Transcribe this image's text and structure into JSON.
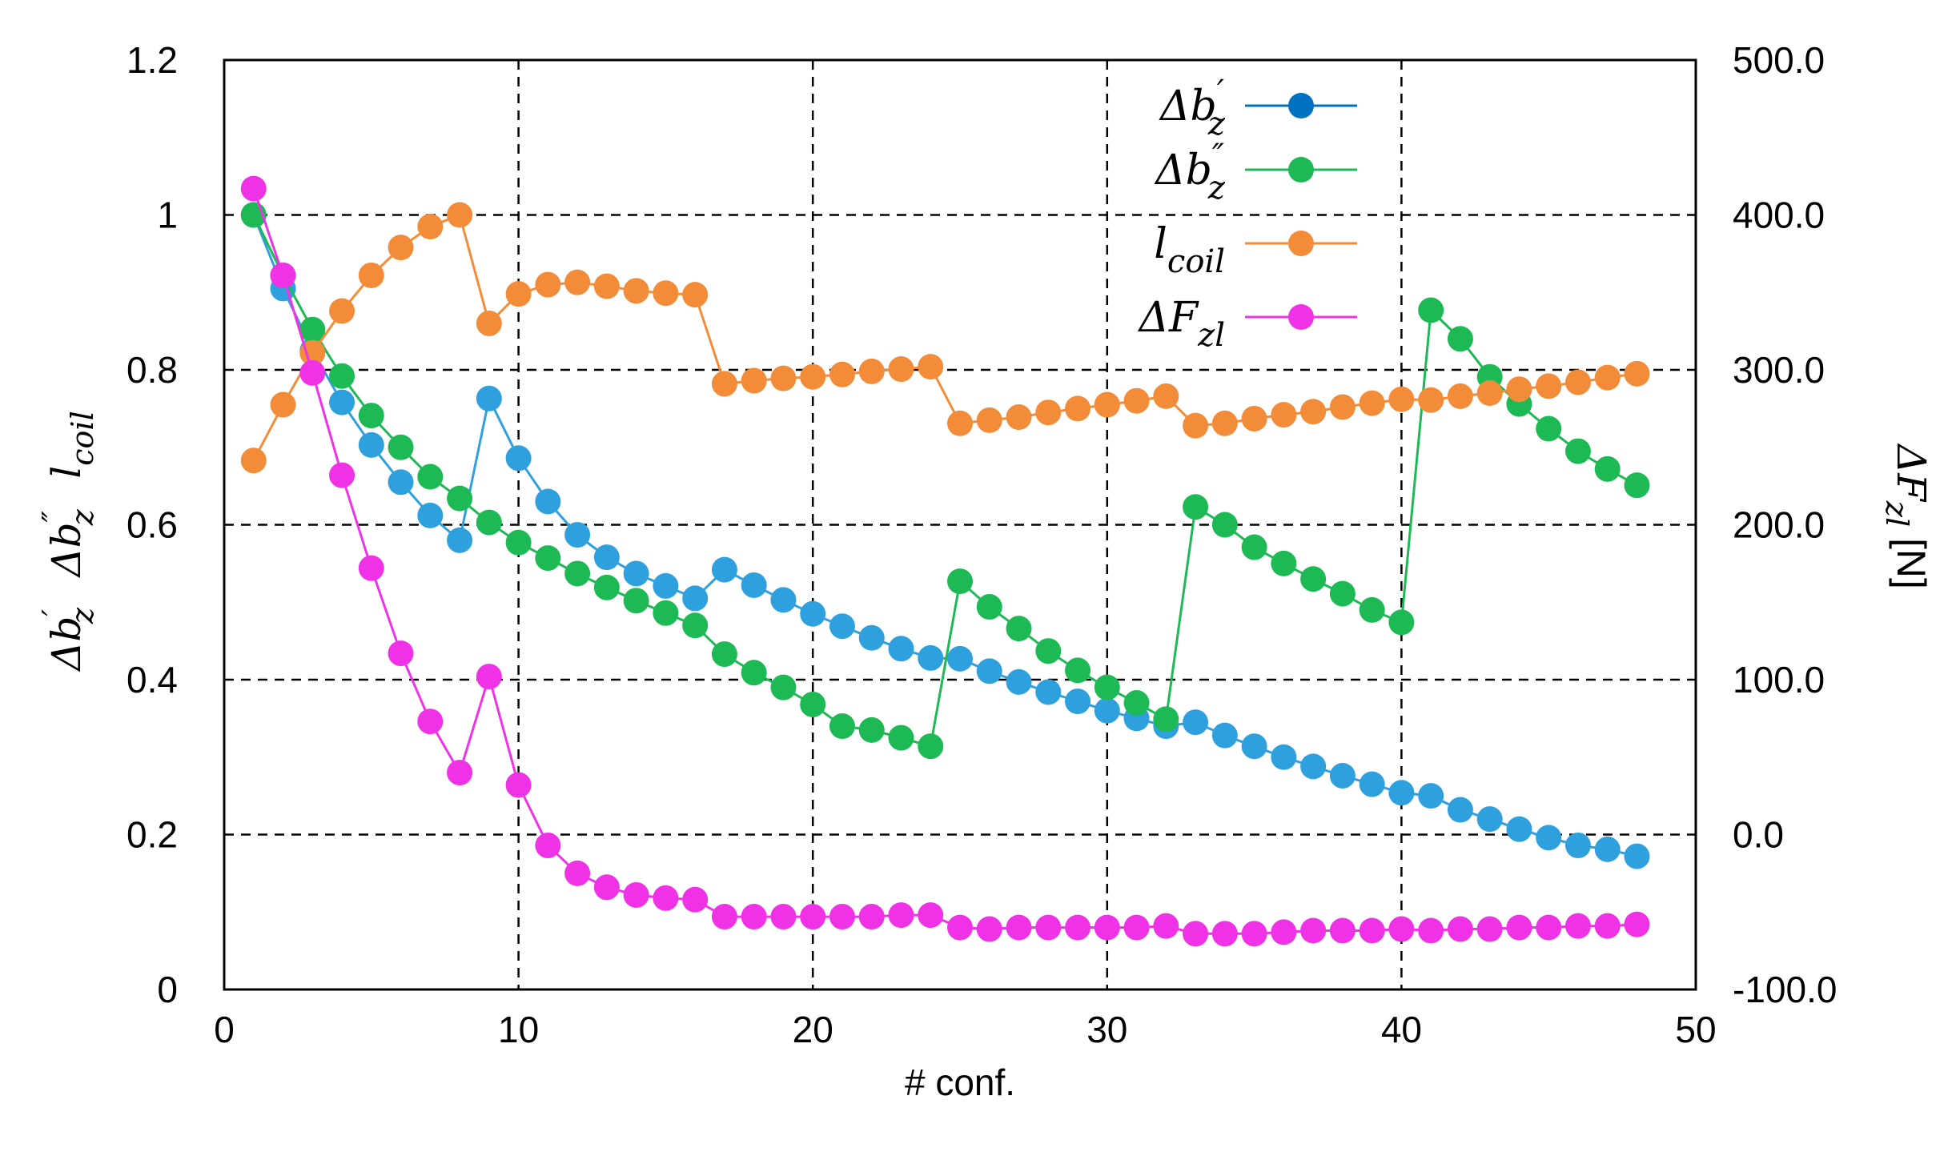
{
  "chart_data": {
    "type": "line",
    "xlabel": "# conf.",
    "ylabel": "Δb′z  Δb″z  lcoil",
    "ylabel_parts": [
      {
        "base": "Δb",
        "prime": "′",
        "sub": "z"
      },
      {
        "base": "Δb",
        "prime": "″",
        "sub": "z"
      },
      {
        "base": "l",
        "prime": "",
        "sub": "coil"
      }
    ],
    "y2label": "ΔFzl [N]",
    "y2label_parts": {
      "base": "ΔF",
      "sub": "zl",
      "unit": " [N]"
    },
    "xlim": [
      0,
      50
    ],
    "ylim": [
      0,
      1.2
    ],
    "y2lim": [
      -100,
      500
    ],
    "x_ticks": [
      "0",
      "10",
      "20",
      "30",
      "40",
      "50"
    ],
    "y_ticks": [
      "0",
      "0.2",
      "0.4",
      "0.6",
      "0.8",
      "1",
      "1.2"
    ],
    "y2_ticks": [
      "-100.0",
      "0.0",
      "100.0",
      "200.0",
      "300.0",
      "400.0",
      "500.0"
    ],
    "grid": true,
    "legend_position": "top-right",
    "series": [
      {
        "name": "Δb′z",
        "legend": {
          "base": "Δb",
          "prime": "′",
          "sub": "z"
        },
        "axis": "left",
        "color": "#2FA0DE",
        "line_color": "#2FA0DE",
        "legend_color": "#0070C0",
        "x": [
          1,
          2,
          3,
          4,
          5,
          6,
          7,
          8,
          9,
          10,
          11,
          12,
          13,
          14,
          15,
          16,
          17,
          18,
          19,
          20,
          21,
          22,
          23,
          24,
          25,
          26,
          27,
          28,
          29,
          30,
          31,
          32,
          33,
          34,
          35,
          36,
          37,
          38,
          39,
          40,
          41,
          42,
          43,
          44,
          45,
          46,
          47,
          48
        ],
        "values": [
          1.0,
          0.905,
          0.825,
          0.758,
          0.703,
          0.655,
          0.612,
          0.58,
          0.763,
          0.686,
          0.63,
          0.587,
          0.558,
          0.537,
          0.521,
          0.505,
          0.542,
          0.522,
          0.503,
          0.485,
          0.469,
          0.454,
          0.44,
          0.428,
          0.427,
          0.411,
          0.397,
          0.384,
          0.372,
          0.36,
          0.35,
          0.34,
          0.345,
          0.328,
          0.314,
          0.3,
          0.288,
          0.276,
          0.265,
          0.254,
          0.25,
          0.232,
          0.22,
          0.207,
          0.196,
          0.186,
          0.181,
          0.172
        ]
      },
      {
        "name": "Δb″z",
        "legend": {
          "base": "Δb",
          "prime": "″",
          "sub": "z"
        },
        "axis": "left",
        "color": "#1DB954",
        "line_color": "#1DB954",
        "legend_color": "#1DB954",
        "x": [
          1,
          2,
          3,
          4,
          5,
          6,
          7,
          8,
          9,
          10,
          11,
          12,
          13,
          14,
          15,
          16,
          17,
          18,
          19,
          20,
          21,
          22,
          23,
          24,
          25,
          26,
          27,
          28,
          29,
          30,
          31,
          32,
          33,
          34,
          35,
          36,
          37,
          38,
          39,
          40,
          41,
          42,
          43,
          44,
          45,
          46,
          47,
          48
        ],
        "values": [
          1.0,
          0.922,
          0.852,
          0.792,
          0.741,
          0.7,
          0.662,
          0.634,
          0.603,
          0.577,
          0.557,
          0.537,
          0.519,
          0.502,
          0.486,
          0.47,
          0.433,
          0.409,
          0.39,
          0.368,
          0.34,
          0.335,
          0.325,
          0.314,
          0.527,
          0.494,
          0.466,
          0.437,
          0.412,
          0.39,
          0.37,
          0.349,
          0.623,
          0.6,
          0.571,
          0.55,
          0.53,
          0.511,
          0.49,
          0.474,
          0.877,
          0.84,
          0.791,
          0.756,
          0.724,
          0.695,
          0.672,
          0.651
        ]
      },
      {
        "name": "lcoil",
        "legend": {
          "base": "l",
          "prime": "",
          "sub": "coil"
        },
        "axis": "left",
        "color": "#F28C38",
        "line_color": "#F28C38",
        "legend_color": "#F28C38",
        "x": [
          1,
          2,
          3,
          4,
          5,
          6,
          7,
          8,
          9,
          10,
          11,
          12,
          13,
          14,
          15,
          16,
          17,
          18,
          19,
          20,
          21,
          22,
          23,
          24,
          25,
          26,
          27,
          28,
          29,
          30,
          31,
          32,
          33,
          34,
          35,
          36,
          37,
          38,
          39,
          40,
          41,
          42,
          43,
          44,
          45,
          46,
          47,
          48
        ],
        "values": [
          0.683,
          0.755,
          0.822,
          0.876,
          0.922,
          0.958,
          0.985,
          1.0,
          0.86,
          0.898,
          0.91,
          0.913,
          0.908,
          0.902,
          0.899,
          0.897,
          0.782,
          0.786,
          0.789,
          0.791,
          0.794,
          0.798,
          0.801,
          0.804,
          0.731,
          0.735,
          0.739,
          0.745,
          0.75,
          0.755,
          0.76,
          0.766,
          0.728,
          0.731,
          0.737,
          0.742,
          0.746,
          0.752,
          0.757,
          0.762,
          0.761,
          0.766,
          0.77,
          0.775,
          0.779,
          0.784,
          0.79,
          0.795
        ]
      },
      {
        "name": "ΔFzl",
        "legend": {
          "base": "ΔF",
          "prime": "",
          "sub": "zl"
        },
        "axis": "right",
        "color": "#F032E6",
        "line_color": "#F032E6",
        "legend_color": "#F032E6",
        "x": [
          1,
          2,
          3,
          4,
          5,
          6,
          7,
          8,
          9,
          10,
          11,
          12,
          13,
          14,
          15,
          16,
          17,
          18,
          19,
          20,
          21,
          22,
          23,
          24,
          25,
          26,
          27,
          28,
          29,
          30,
          31,
          32,
          33,
          34,
          35,
          36,
          37,
          38,
          39,
          40,
          41,
          42,
          43,
          44,
          45,
          46,
          47,
          48
        ],
        "values": [
          417,
          361,
          298,
          232,
          172,
          117,
          73,
          40,
          102,
          32,
          -7,
          -25,
          -34,
          -39,
          -41,
          -42,
          -53,
          -53,
          -53,
          -53,
          -53,
          -53,
          -52,
          -52,
          -60,
          -61,
          -60,
          -60,
          -60,
          -60,
          -60,
          -59,
          -64,
          -64,
          -64,
          -63,
          -62,
          -62,
          -62,
          -61,
          -62,
          -61,
          -61,
          -60,
          -60,
          -59,
          -59,
          -58
        ]
      }
    ]
  }
}
